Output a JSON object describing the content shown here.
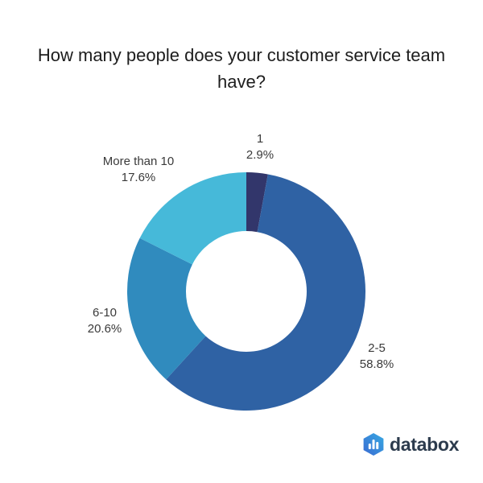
{
  "title": "How many people does your customer service team have?",
  "title_lines": {
    "line1": "How many people does your customer service team",
    "line2": "have?"
  },
  "chart_data": {
    "type": "pie",
    "subtype": "donut",
    "title": "How many people does your customer service team have?",
    "categories": [
      "1",
      "2-5",
      "6-10",
      "More than 10"
    ],
    "values": [
      2.9,
      58.8,
      20.6,
      17.6
    ],
    "display_values": [
      "2.9%",
      "58.8%",
      "20.6%",
      "17.6%"
    ],
    "colors": [
      "#32366b",
      "#2f62a4",
      "#308bbe",
      "#46b9d9"
    ],
    "start_angle_deg": 0,
    "direction": "clockwise",
    "inner_radius_ratio": 0.51,
    "legend": "none",
    "labels_position": "outside"
  },
  "logo": {
    "text": "databox",
    "icon": "databox-hexagon-bars-icon",
    "icon_gradient_start": "#3a6bd2",
    "icon_gradient_end": "#37a9e2",
    "bar_color": "#ffffff"
  }
}
